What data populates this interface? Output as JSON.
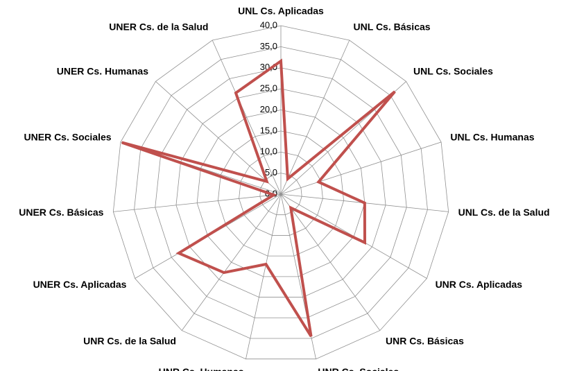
{
  "chart_data": {
    "type": "radar",
    "categories": [
      "UNL Cs. Aplicadas",
      "UNL Cs. Básicas",
      "UNL Cs. Sociales",
      "UNL Cs. Humanas",
      "UNL Cs. de la Salud",
      "UNR Cs. Aplicadas",
      "UNR Cs. Básicas",
      "UNR Cs. Sociales",
      "UNR Cs. Humanas",
      "UNR Cs. de la Salud",
      "UNER Cs. Aplicadas",
      "UNER Cs. Básicas",
      "UNER Cs. Sociales",
      "UNER Cs. Humanas",
      "UNER Cs. de la Salud"
    ],
    "values": [
      31.6,
      4,
      36.4,
      9.4,
      20,
      23,
      4,
      34.5,
      17,
      23,
      28,
      1.7,
      39.7,
      4.5,
      26.3
    ],
    "color": "#c0504d",
    "ylim": [
      0,
      40
    ],
    "yticks": [
      {
        "value": 0,
        "label": "0,0"
      },
      {
        "value": 5,
        "label": "5,0"
      },
      {
        "value": 10,
        "label": "10,0"
      },
      {
        "value": 15,
        "label": "15,0"
      },
      {
        "value": 20,
        "label": "20,0"
      },
      {
        "value": 25,
        "label": "25,0"
      },
      {
        "value": 30,
        "label": "30,0"
      },
      {
        "value": 35,
        "label": "35,0"
      },
      {
        "value": 40,
        "label": "40,0"
      }
    ],
    "grid": true
  }
}
